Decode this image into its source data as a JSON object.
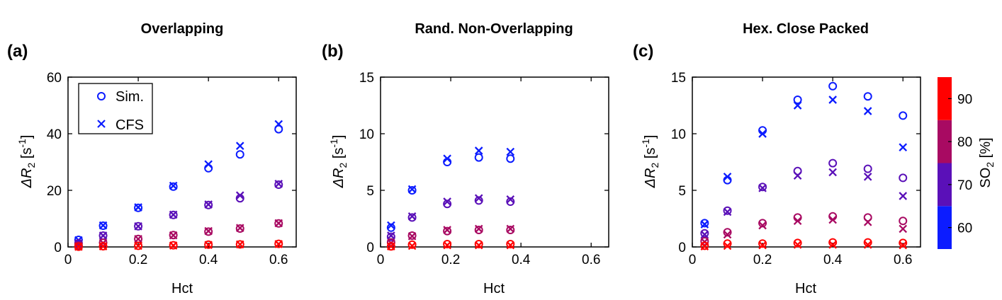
{
  "figure": {
    "colorbar": {
      "label_main": "SO",
      "label_sub": "2",
      "label_unit": "[%]",
      "ticks": [
        60,
        70,
        80,
        90
      ],
      "range": [
        55,
        95
      ],
      "bands": [
        {
          "from": 55,
          "to": 65,
          "color": "#0c1cff"
        },
        {
          "from": 65,
          "to": 75,
          "color": "#5a10b8"
        },
        {
          "from": 75,
          "to": 85,
          "color": "#a80a62"
        },
        {
          "from": 85,
          "to": 95,
          "color": "#ff0000"
        }
      ]
    },
    "ylabel_main": "ΔR",
    "ylabel_sub": "2",
    "ylabel_unit": "[s",
    "ylabel_sup": "-1",
    "ylabel_close": "]"
  },
  "chart_data": [
    {
      "type": "scatter",
      "panel_label": "(a)",
      "title": "Overlapping",
      "xlabel": "Hct",
      "ylabel": "ΔR2 [s-1]",
      "xlim": [
        0,
        0.65
      ],
      "ylim": [
        0,
        60
      ],
      "xticks": [
        0,
        0.2,
        0.4,
        0.6
      ],
      "yticks": [
        0,
        20,
        40,
        60
      ],
      "legend": {
        "position": "top-left",
        "entries": [
          {
            "marker": "o",
            "label": "Sim."
          },
          {
            "marker": "x",
            "label": "CFS"
          }
        ]
      },
      "x": [
        0.03,
        0.1,
        0.2,
        0.3,
        0.4,
        0.49,
        0.6
      ],
      "series": [
        {
          "name": "SO2 60",
          "color": "#0c1cff",
          "sim": [
            2.5,
            7.5,
            13.8,
            21.3,
            27.8,
            32.7,
            41.6
          ],
          "cfs": [
            2.4,
            7.6,
            14.0,
            21.6,
            29.2,
            35.7,
            43.4
          ]
        },
        {
          "name": "SO2 70",
          "color": "#5a10b8",
          "sim": [
            1.3,
            4.0,
            7.3,
            11.3,
            14.8,
            17.2,
            22.0
          ],
          "cfs": [
            1.2,
            4.0,
            7.3,
            11.4,
            15.0,
            18.2,
            22.3
          ]
        },
        {
          "name": "SO2 80",
          "color": "#a80a62",
          "sim": [
            0.5,
            1.5,
            2.8,
            4.2,
            5.4,
            6.5,
            8.3
          ],
          "cfs": [
            0.4,
            1.4,
            2.8,
            4.1,
            5.6,
            6.7,
            8.4
          ]
        },
        {
          "name": "SO2 90",
          "color": "#ff0000",
          "sim": [
            0.1,
            0.25,
            0.4,
            0.6,
            0.8,
            0.9,
            1.1
          ],
          "cfs": [
            0.05,
            0.2,
            0.4,
            0.5,
            0.7,
            0.9,
            1.0
          ]
        }
      ]
    },
    {
      "type": "scatter",
      "panel_label": "(b)",
      "title": "Rand. Non-Overlapping",
      "xlabel": "Hct",
      "ylabel": "ΔR2 [s-1]",
      "xlim": [
        0,
        0.65
      ],
      "ylim": [
        0,
        15
      ],
      "xticks": [
        0,
        0.2,
        0.4,
        0.6
      ],
      "yticks": [
        0,
        5,
        10,
        15
      ],
      "x": [
        0.03,
        0.09,
        0.19,
        0.28,
        0.37
      ],
      "series": [
        {
          "name": "SO2 60",
          "color": "#0c1cff",
          "sim": [
            1.7,
            5.0,
            7.5,
            7.9,
            7.8
          ],
          "cfs": [
            1.9,
            5.1,
            7.8,
            8.5,
            8.4
          ]
        },
        {
          "name": "SO2 70",
          "color": "#5a10b8",
          "sim": [
            0.9,
            2.6,
            3.8,
            4.1,
            4.0
          ],
          "cfs": [
            1.0,
            2.7,
            4.0,
            4.3,
            4.2
          ]
        },
        {
          "name": "SO2 80",
          "color": "#a80a62",
          "sim": [
            0.4,
            1.0,
            1.4,
            1.5,
            1.5
          ],
          "cfs": [
            0.35,
            0.95,
            1.5,
            1.6,
            1.6
          ]
        },
        {
          "name": "SO2 90",
          "color": "#ff0000",
          "sim": [
            0.05,
            0.2,
            0.25,
            0.25,
            0.25
          ],
          "cfs": [
            0.05,
            0.1,
            0.15,
            0.15,
            0.15
          ]
        }
      ]
    },
    {
      "type": "scatter",
      "panel_label": "(c)",
      "title": "Hex. Close Packed",
      "xlabel": "Hct",
      "ylabel": "ΔR2 [s-1]",
      "xlim": [
        0,
        0.65
      ],
      "ylim": [
        0,
        15
      ],
      "xticks": [
        0,
        0.2,
        0.4,
        0.6
      ],
      "yticks": [
        0,
        5,
        10,
        15
      ],
      "x": [
        0.035,
        0.1,
        0.2,
        0.3,
        0.4,
        0.5,
        0.6
      ],
      "series": [
        {
          "name": "SO2 60",
          "color": "#0c1cff",
          "sim": [
            2.1,
            5.9,
            10.3,
            13.0,
            14.2,
            13.3,
            11.6
          ],
          "cfs": [
            2.0,
            6.2,
            10.0,
            12.5,
            13.0,
            12.0,
            8.8
          ]
        },
        {
          "name": "SO2 70",
          "color": "#5a10b8",
          "sim": [
            1.2,
            3.2,
            5.3,
            6.7,
            7.4,
            6.9,
            6.1
          ],
          "cfs": [
            1.1,
            3.1,
            5.2,
            6.3,
            6.6,
            6.2,
            4.5
          ]
        },
        {
          "name": "SO2 80",
          "color": "#a80a62",
          "sim": [
            0.5,
            1.3,
            2.1,
            2.6,
            2.7,
            2.6,
            2.3
          ],
          "cfs": [
            0.45,
            1.1,
            1.9,
            2.3,
            2.4,
            2.2,
            1.6
          ]
        },
        {
          "name": "SO2 90",
          "color": "#ff0000",
          "sim": [
            0.1,
            0.3,
            0.3,
            0.35,
            0.4,
            0.4,
            0.35
          ],
          "cfs": [
            0.05,
            0.1,
            0.15,
            0.2,
            0.2,
            0.2,
            0.15
          ]
        }
      ]
    }
  ]
}
